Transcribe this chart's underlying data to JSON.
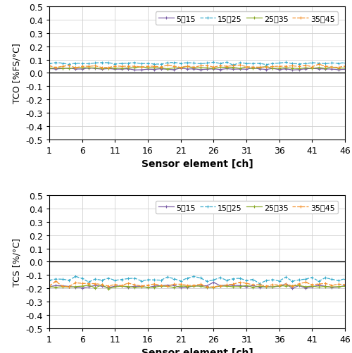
{
  "n_channels": 46,
  "legend_labels": [
    "5～15",
    "15～25",
    "25～35",
    "35～45"
  ],
  "colors": [
    "#7b5ea7",
    "#3aaccc",
    "#8aaa28",
    "#f5902a"
  ],
  "linestyles": [
    "-",
    "--",
    "-",
    "--"
  ],
  "tco_values": [
    0.03,
    0.072,
    0.038,
    0.048
  ],
  "tco_noise": [
    0.004,
    0.005,
    0.004,
    0.006
  ],
  "tcs_values": [
    -0.185,
    -0.132,
    -0.188,
    -0.172
  ],
  "tcs_noise": [
    0.008,
    0.01,
    0.007,
    0.012
  ],
  "ylabel_top": "TCO [%FS/°C]",
  "ylabel_bottom": "TCS [%/°C]",
  "xlabel": "Sensor element [ch]",
  "ylim": [
    -0.5,
    0.5
  ],
  "yticks": [
    -0.5,
    -0.4,
    -0.3,
    -0.2,
    -0.1,
    0.0,
    0.1,
    0.2,
    0.3,
    0.4,
    0.5
  ],
  "xticks": [
    1,
    6,
    11,
    16,
    21,
    26,
    31,
    36,
    41,
    46
  ],
  "grid_color": "#d0d0d0",
  "bg_color": "#ffffff",
  "fig_bg_color": "#ffffff"
}
